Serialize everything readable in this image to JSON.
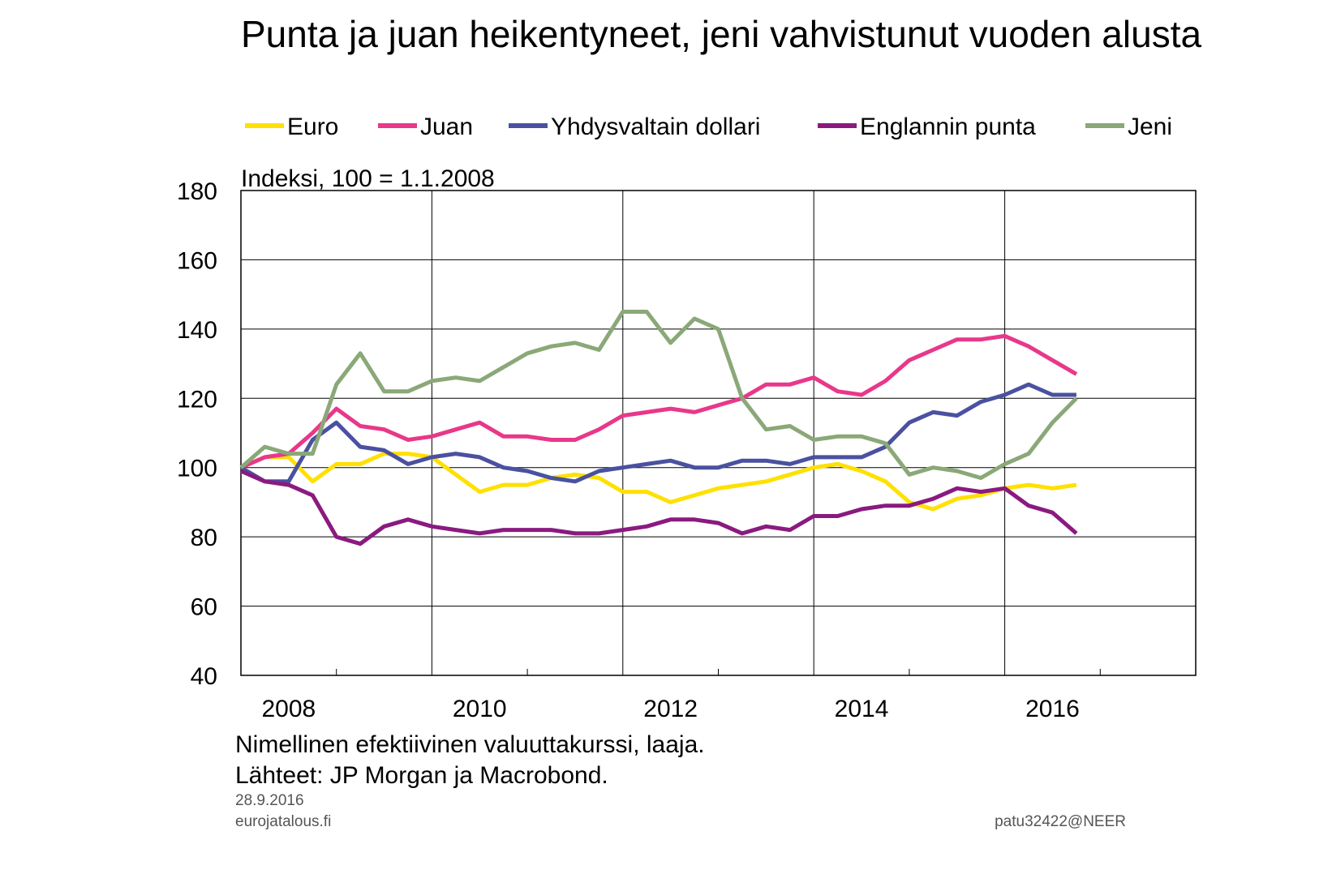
{
  "chart_data": {
    "type": "line",
    "title": "Punta ja juan heikentyneet, jeni vahvistunut vuoden alusta",
    "ylabel": "Indeksi, 100 = 1.1.2008",
    "notes": [
      "Nimellinen efektiivinen valuuttakurssi, laaja.",
      "Lähteet: JP Morgan ja Macrobond."
    ],
    "date": "28.9.2016",
    "site": "eurojatalous.fi",
    "code": "patu32422@NEER",
    "x": [
      2008.0,
      2008.25,
      2008.5,
      2008.75,
      2009.0,
      2009.25,
      2009.5,
      2009.75,
      2010.0,
      2010.25,
      2010.5,
      2010.75,
      2011.0,
      2011.25,
      2011.5,
      2011.75,
      2012.0,
      2012.25,
      2012.5,
      2012.75,
      2013.0,
      2013.25,
      2013.5,
      2013.75,
      2014.0,
      2014.25,
      2014.5,
      2014.75,
      2015.0,
      2015.25,
      2015.5,
      2015.75,
      2016.0,
      2016.25,
      2016.5,
      2016.75
    ],
    "series": [
      {
        "name": "Euro",
        "color": "#ffe000",
        "values": [
          100,
          103,
          103,
          96,
          101,
          101,
          104,
          104,
          103,
          98,
          93,
          95,
          95,
          97,
          98,
          97,
          93,
          93,
          90,
          92,
          94,
          95,
          96,
          98,
          100,
          101,
          99,
          96,
          90,
          88,
          91,
          92,
          94,
          95,
          94,
          95
        ]
      },
      {
        "name": "Juan",
        "color": "#e8388a",
        "values": [
          100,
          103,
          104,
          110,
          117,
          112,
          111,
          108,
          109,
          111,
          113,
          109,
          109,
          108,
          108,
          111,
          115,
          116,
          117,
          116,
          118,
          120,
          124,
          124,
          126,
          122,
          121,
          125,
          131,
          134,
          137,
          137,
          138,
          135,
          131,
          127
        ]
      },
      {
        "name": "Yhdysvaltain dollari",
        "color": "#4a51a0",
        "values": [
          100,
          96,
          96,
          108,
          113,
          106,
          105,
          101,
          103,
          104,
          103,
          100,
          99,
          97,
          96,
          99,
          100,
          101,
          102,
          100,
          100,
          102,
          102,
          101,
          103,
          103,
          103,
          106,
          113,
          116,
          115,
          119,
          121,
          124,
          121,
          121
        ]
      },
      {
        "name": "Englannin punta",
        "color": "#8a1a80",
        "values": [
          99,
          96,
          95,
          92,
          80,
          78,
          83,
          85,
          83,
          82,
          81,
          82,
          82,
          82,
          81,
          81,
          82,
          83,
          85,
          85,
          84,
          81,
          83,
          82,
          86,
          86,
          88,
          89,
          89,
          91,
          94,
          93,
          94,
          89,
          87,
          81
        ]
      },
      {
        "name": "Jeni",
        "color": "#8aa878",
        "values": [
          100,
          106,
          104,
          104,
          124,
          133,
          122,
          122,
          125,
          126,
          125,
          129,
          133,
          135,
          136,
          134,
          145,
          145,
          136,
          143,
          140,
          120,
          111,
          112,
          108,
          109,
          109,
          107,
          98,
          100,
          99,
          97,
          101,
          104,
          113,
          120
        ]
      }
    ],
    "xlim": [
      2008,
      2018
    ],
    "xticks": [
      2008,
      2010,
      2012,
      2014,
      2016
    ],
    "xminorticks": [
      2009,
      2011,
      2013,
      2015,
      2017
    ],
    "ylim": [
      40,
      180
    ],
    "yticks": [
      40,
      60,
      80,
      100,
      120,
      140,
      160,
      180
    ],
    "grid": true
  }
}
